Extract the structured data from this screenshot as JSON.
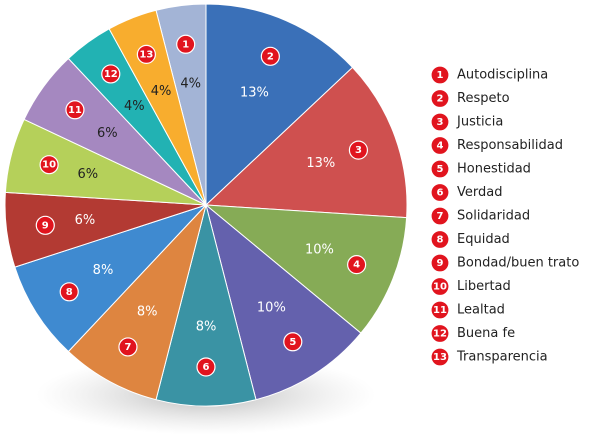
{
  "chart_data": {
    "type": "pie",
    "numbers": [
      "1",
      "2",
      "3",
      "4",
      "5",
      "6",
      "7",
      "8",
      "9",
      "10",
      "11",
      "12",
      "13"
    ],
    "categories": [
      "Autodisciplina",
      "Respeto",
      "Justicia",
      "Responsabilidad",
      "Honestidad",
      "Verdad",
      "Solidaridad",
      "Equidad",
      "Bondad/buen trato",
      "Libertad",
      "Lealtad",
      "Buena fe",
      "Transparencia"
    ],
    "values": [
      4,
      13,
      13,
      10,
      10,
      8,
      8,
      8,
      6,
      6,
      6,
      4,
      4
    ],
    "value_labels": [
      "4%",
      "13%",
      "13%",
      "10%",
      "10%",
      "8%",
      "8%",
      "8%",
      "6%",
      "6%",
      "6%",
      "4%",
      "4%"
    ],
    "colors": [
      "#a3b4d6",
      "#3a70b8",
      "#cf504f",
      "#86ab56",
      "#6461ad",
      "#3a93a4",
      "#de8540",
      "#3f8ad0",
      "#b33a33",
      "#b5d05a",
      "#a588c0",
      "#22b2b3",
      "#f8ad2e"
    ],
    "legend": "right"
  }
}
